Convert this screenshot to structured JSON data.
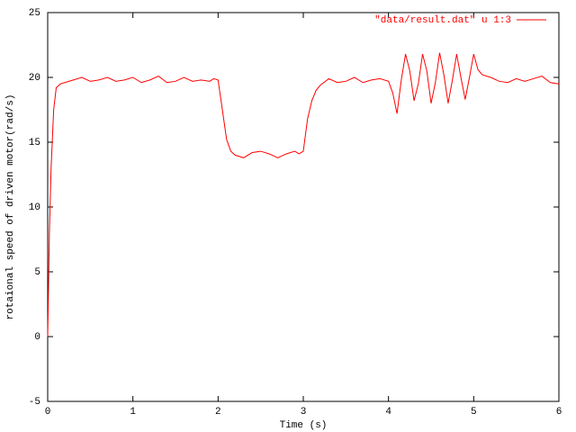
{
  "chart_data": {
    "type": "line",
    "xlabel": "Time (s)",
    "ylabel": "rotaional speed of driven motor(rad/s)",
    "x": [
      0,
      0.02,
      0.04,
      0.07,
      0.1,
      0.15,
      0.2,
      0.3,
      0.4,
      0.5,
      0.6,
      0.7,
      0.8,
      0.9,
      1.0,
      1.1,
      1.2,
      1.3,
      1.4,
      1.5,
      1.6,
      1.7,
      1.8,
      1.9,
      1.95,
      2.0,
      2.05,
      2.1,
      2.15,
      2.2,
      2.3,
      2.4,
      2.5,
      2.6,
      2.7,
      2.8,
      2.9,
      2.95,
      3.0,
      3.05,
      3.1,
      3.15,
      3.2,
      3.3,
      3.4,
      3.5,
      3.6,
      3.7,
      3.8,
      3.9,
      4.0,
      4.05,
      4.1,
      4.15,
      4.2,
      4.25,
      4.3,
      4.35,
      4.4,
      4.45,
      4.5,
      4.55,
      4.6,
      4.65,
      4.7,
      4.75,
      4.8,
      4.85,
      4.9,
      4.95,
      5.0,
      5.05,
      5.1,
      5.2,
      5.3,
      5.4,
      5.5,
      5.6,
      5.7,
      5.8,
      5.9,
      6.0
    ],
    "series": [
      {
        "name": "\"data/result.dat\" u 1:3",
        "color": "#ff0000",
        "values": [
          0,
          8,
          13,
          17.5,
          19.2,
          19.5,
          19.6,
          19.8,
          20,
          19.7,
          19.8,
          20,
          19.7,
          19.8,
          20,
          19.6,
          19.8,
          20.1,
          19.6,
          19.7,
          20,
          19.7,
          19.8,
          19.7,
          19.9,
          19.8,
          17.5,
          15.2,
          14.3,
          14,
          13.8,
          14.2,
          14.3,
          14.1,
          13.8,
          14.1,
          14.3,
          14.1,
          14.3,
          16.8,
          18.2,
          19,
          19.4,
          19.9,
          19.6,
          19.7,
          20,
          19.6,
          19.8,
          19.9,
          19.7,
          18.8,
          17.2,
          19.8,
          21.8,
          20.5,
          18.2,
          19.5,
          21.8,
          20.5,
          18,
          19.6,
          21.9,
          20.2,
          18,
          19.8,
          21.8,
          20,
          18.3,
          20,
          21.8,
          20.6,
          20.2,
          20,
          19.7,
          19.6,
          19.9,
          19.7,
          19.9,
          20.1,
          19.6,
          19.5
        ]
      }
    ],
    "xlim": [
      0,
      6
    ],
    "xticks": [
      0,
      1,
      2,
      3,
      4,
      5,
      6
    ],
    "ylim": [
      -5,
      25
    ],
    "yticks": [
      -5,
      0,
      5,
      10,
      15,
      20,
      25
    ],
    "legend": "top-right",
    "grid": false
  }
}
